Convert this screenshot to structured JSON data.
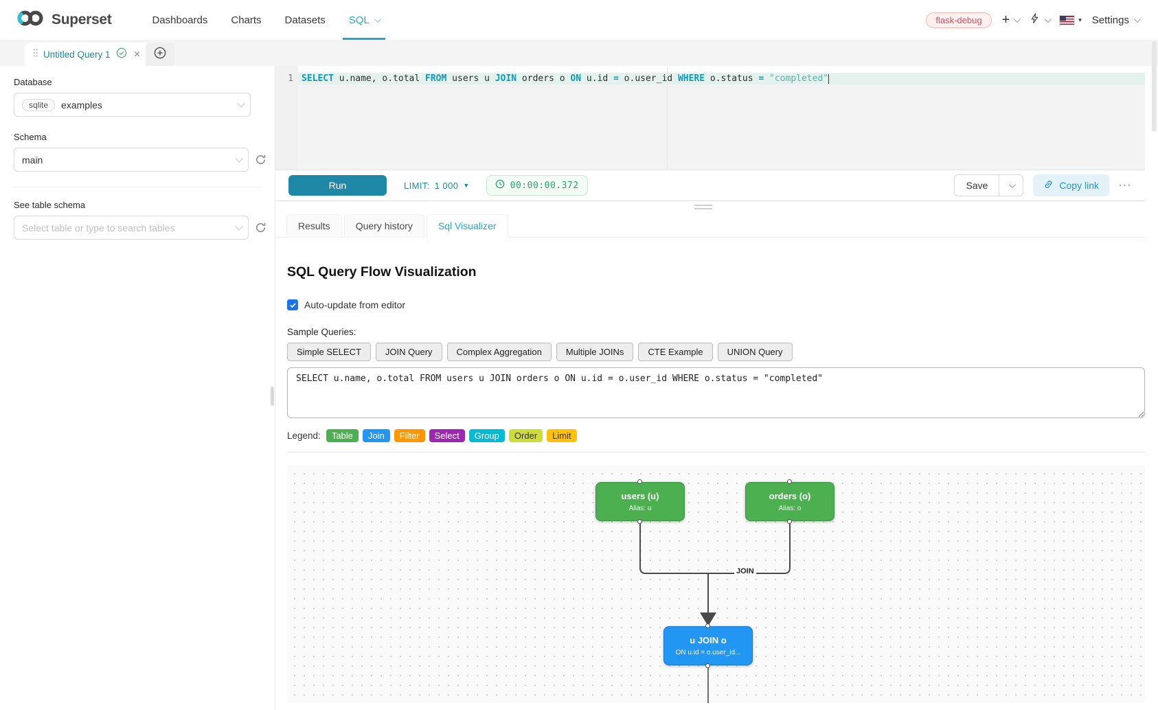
{
  "header": {
    "brand": "Superset",
    "nav": [
      {
        "label": "Dashboards"
      },
      {
        "label": "Charts"
      },
      {
        "label": "Datasets"
      },
      {
        "label": "SQL"
      }
    ],
    "env_badge": "flask-debug",
    "settings_label": "Settings"
  },
  "query_tab": {
    "label": "Untitled Query 1"
  },
  "sidebar": {
    "database_label": "Database",
    "database_engine": "sqlite",
    "database_value": "examples",
    "schema_label": "Schema",
    "schema_value": "main",
    "table_label": "See table schema",
    "table_placeholder": "Select table or type to search tables"
  },
  "editor": {
    "line_number": "1",
    "tokens": [
      {
        "text": "SELECT",
        "type": "kw"
      },
      {
        "text": " u.name, o.total ",
        "type": "plain"
      },
      {
        "text": "FROM",
        "type": "kw"
      },
      {
        "text": " users u ",
        "type": "plain"
      },
      {
        "text": "JOIN",
        "type": "kw"
      },
      {
        "text": " orders o ",
        "type": "plain"
      },
      {
        "text": "ON",
        "type": "kw"
      },
      {
        "text": " u.id ",
        "type": "plain"
      },
      {
        "text": "=",
        "type": "kw"
      },
      {
        "text": " o.user_id ",
        "type": "plain"
      },
      {
        "text": "WHERE",
        "type": "kw"
      },
      {
        "text": " o.status ",
        "type": "plain"
      },
      {
        "text": "=",
        "type": "kw"
      },
      {
        "text": " ",
        "type": "plain"
      },
      {
        "text": "\"completed\"",
        "type": "str"
      }
    ]
  },
  "toolbar": {
    "run_label": "Run",
    "limit_label": "LIMIT:",
    "limit_value": "1 000",
    "timer": "00:00:00.372",
    "save_label": "Save",
    "copy_link_label": "Copy link",
    "more_label": "⋯"
  },
  "result_tabs": [
    {
      "label": "Results"
    },
    {
      "label": "Query history"
    },
    {
      "label": "Sql Visualizer"
    }
  ],
  "visualizer": {
    "title": "SQL Query Flow Visualization",
    "auto_update_label": "Auto-update from editor",
    "samples_label": "Sample Queries:",
    "sample_buttons": [
      {
        "label": "Simple SELECT"
      },
      {
        "label": "JOIN Query"
      },
      {
        "label": "Complex Aggregation"
      },
      {
        "label": "Multiple JOINs"
      },
      {
        "label": "CTE Example"
      },
      {
        "label": "UNION Query"
      }
    ],
    "query_text": "SELECT u.name, o.total FROM users u JOIN orders o ON u.id = o.user_id WHERE o.status = \"completed\"",
    "legend_label": "Legend:",
    "legend": [
      {
        "label": "Table",
        "bg": "#4caf50",
        "fg": "#ffffff"
      },
      {
        "label": "Join",
        "bg": "#2196f3",
        "fg": "#ffffff"
      },
      {
        "label": "Filter",
        "bg": "#ff9800",
        "fg": "#ffffff"
      },
      {
        "label": "Select",
        "bg": "#9c27b0",
        "fg": "#ffffff"
      },
      {
        "label": "Group",
        "bg": "#00bcd4",
        "fg": "#ffffff"
      },
      {
        "label": "Order",
        "bg": "#cddc39",
        "fg": "#333333"
      },
      {
        "label": "Limit",
        "bg": "#ffc107",
        "fg": "#333333"
      }
    ],
    "diagram": {
      "nodes": [
        {
          "title": "users (u)",
          "subtitle": "Alias: u",
          "type": "table"
        },
        {
          "title": "orders (o)",
          "subtitle": "Alias: o",
          "type": "table"
        },
        {
          "title": "u JOIN o",
          "subtitle": "ON u.id = o.user_id...",
          "type": "join"
        }
      ],
      "edge_label": "JOIN"
    },
    "colors": {
      "accent": "#20a7c9",
      "table_node": "#4caf50",
      "join_node": "#2196f3",
      "run_button": "#1f88a7"
    }
  }
}
